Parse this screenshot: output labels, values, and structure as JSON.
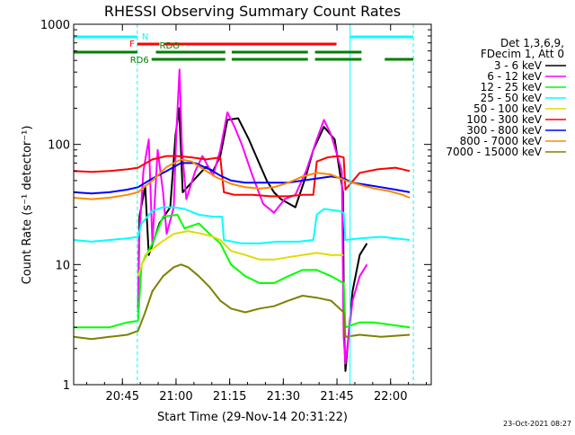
{
  "chart_data": {
    "type": "line",
    "title": "RHESSI Observing Summary Count Rates",
    "xlabel": "Start Time (29-Nov-14 20:31:22)",
    "ylabel": "Count Rate (s⁻¹ detector⁻¹)",
    "yscale": "log",
    "ylim": [
      1,
      1000
    ],
    "xlim_minutes": [
      0,
      100
    ],
    "x_tick_labels": [
      "20:45",
      "21:00",
      "21:15",
      "21:30",
      "21:45",
      "22:00"
    ],
    "x_tick_minutes": [
      13.63,
      28.63,
      43.63,
      58.63,
      73.63,
      88.63
    ],
    "y_tick_labels": [
      "1",
      "10",
      "100",
      "1000"
    ],
    "y_tick_values": [
      1,
      10,
      100,
      1000
    ],
    "legend_header": [
      "Det 1,3,6,9,",
      "FDecim 1, Att 0"
    ],
    "legend_position": "right",
    "footer": "23-Oct-2021 08:27",
    "series": [
      {
        "name": "3 - 6 keV",
        "color": "#000000",
        "points": [
          [
            18,
            4
          ],
          [
            18.4,
            25
          ],
          [
            20,
            45
          ],
          [
            21,
            12
          ],
          [
            24,
            22
          ],
          [
            27,
            30
          ],
          [
            28.5,
            120
          ],
          [
            29.5,
            200
          ],
          [
            30.5,
            40
          ],
          [
            34,
            52
          ],
          [
            37,
            65
          ],
          [
            39,
            60
          ],
          [
            41,
            80
          ],
          [
            43,
            160
          ],
          [
            46,
            165
          ],
          [
            49,
            110
          ],
          [
            51,
            80
          ],
          [
            54,
            50
          ],
          [
            56,
            40
          ],
          [
            58,
            35
          ],
          [
            62,
            30
          ],
          [
            65,
            55
          ],
          [
            67,
            90
          ],
          [
            70,
            140
          ],
          [
            73,
            110
          ],
          [
            75.3,
            40
          ],
          [
            75.6,
            3
          ],
          [
            76,
            1.3
          ],
          [
            78,
            6
          ],
          [
            80,
            12
          ],
          [
            82,
            15
          ]
        ]
      },
      {
        "name": "6 - 12 keV",
        "color": "#ff00ff",
        "points": [
          [
            18,
            4
          ],
          [
            18.4,
            18
          ],
          [
            19.5,
            60
          ],
          [
            21,
            110
          ],
          [
            22,
            15
          ],
          [
            23.5,
            90
          ],
          [
            25,
            40
          ],
          [
            26,
            18
          ],
          [
            28,
            30
          ],
          [
            28.7,
            120
          ],
          [
            29.6,
            420
          ],
          [
            30.3,
            90
          ],
          [
            31.5,
            35
          ],
          [
            34,
            60
          ],
          [
            36,
            80
          ],
          [
            39,
            55
          ],
          [
            41,
            90
          ],
          [
            43,
            185
          ],
          [
            45,
            140
          ],
          [
            47,
            100
          ],
          [
            50,
            55
          ],
          [
            53,
            32
          ],
          [
            56,
            27
          ],
          [
            59,
            35
          ],
          [
            62,
            38
          ],
          [
            65,
            60
          ],
          [
            68,
            110
          ],
          [
            70,
            160
          ],
          [
            72,
            120
          ],
          [
            75,
            60
          ],
          [
            75.5,
            2.5
          ],
          [
            76,
            1.5
          ],
          [
            78,
            5
          ],
          [
            80,
            8
          ],
          [
            82,
            10
          ]
        ]
      },
      {
        "name": "12 - 25 keV",
        "color": "#00ff00",
        "points": [
          [
            0,
            3
          ],
          [
            10,
            3
          ],
          [
            15,
            3.3
          ],
          [
            18,
            3.4
          ],
          [
            19,
            10
          ],
          [
            22,
            15
          ],
          [
            25,
            25
          ],
          [
            29,
            26
          ],
          [
            31,
            20
          ],
          [
            35,
            22
          ],
          [
            38,
            18
          ],
          [
            41,
            15
          ],
          [
            44,
            10
          ],
          [
            48,
            8
          ],
          [
            52,
            7
          ],
          [
            56,
            7
          ],
          [
            60,
            8
          ],
          [
            64,
            9
          ],
          [
            68,
            9
          ],
          [
            72,
            8
          ],
          [
            75.5,
            7
          ],
          [
            76,
            3
          ],
          [
            80,
            3.3
          ],
          [
            84,
            3.3
          ],
          [
            94,
            3
          ]
        ]
      },
      {
        "name": "25 - 50 keV",
        "color": "#00ffff",
        "points": [
          [
            0,
            16
          ],
          [
            5,
            15.5
          ],
          [
            10,
            16
          ],
          [
            15,
            16.5
          ],
          [
            18,
            17
          ],
          [
            19,
            22
          ],
          [
            22,
            28
          ],
          [
            25,
            30
          ],
          [
            28,
            30
          ],
          [
            31,
            29
          ],
          [
            35,
            26
          ],
          [
            39,
            25
          ],
          [
            41.5,
            25
          ],
          [
            42,
            16
          ],
          [
            47,
            15
          ],
          [
            52,
            15
          ],
          [
            57,
            15.5
          ],
          [
            63,
            15.5
          ],
          [
            67,
            16
          ],
          [
            68,
            26
          ],
          [
            70,
            29
          ],
          [
            74,
            28
          ],
          [
            75.5,
            27
          ],
          [
            76,
            16
          ],
          [
            80,
            16.5
          ],
          [
            86,
            17
          ],
          [
            90,
            16.5
          ],
          [
            94,
            16
          ]
        ]
      },
      {
        "name": "50 - 100 keV",
        "color": "#dddd00",
        "points": [
          [
            18,
            8
          ],
          [
            20,
            12
          ],
          [
            24,
            15
          ],
          [
            28,
            18
          ],
          [
            32,
            19
          ],
          [
            36,
            18
          ],
          [
            39,
            17
          ],
          [
            41,
            16
          ],
          [
            44,
            13
          ],
          [
            48,
            12
          ],
          [
            52,
            11
          ],
          [
            56,
            11
          ],
          [
            60,
            11.5
          ],
          [
            64,
            12
          ],
          [
            68,
            12.5
          ],
          [
            72,
            12
          ],
          [
            75.5,
            12
          ]
        ]
      },
      {
        "name": "100 - 300 keV",
        "color": "#ff0000",
        "points": [
          [
            0,
            60
          ],
          [
            5,
            59
          ],
          [
            10,
            60
          ],
          [
            15,
            62
          ],
          [
            18,
            64
          ],
          [
            22,
            75
          ],
          [
            26,
            80
          ],
          [
            29,
            80
          ],
          [
            33,
            78
          ],
          [
            37,
            75
          ],
          [
            41,
            78
          ],
          [
            42,
            40
          ],
          [
            45,
            38
          ],
          [
            50,
            38
          ],
          [
            55,
            37
          ],
          [
            60,
            37
          ],
          [
            64,
            38
          ],
          [
            67,
            38
          ],
          [
            68,
            72
          ],
          [
            71,
            78
          ],
          [
            74,
            80
          ],
          [
            75.5,
            78
          ],
          [
            76,
            42
          ],
          [
            80,
            58
          ],
          [
            85,
            62
          ],
          [
            90,
            64
          ],
          [
            94,
            60
          ]
        ]
      },
      {
        "name": "300 - 800 keV",
        "color": "#0000ff",
        "points": [
          [
            0,
            40
          ],
          [
            5,
            39
          ],
          [
            10,
            40
          ],
          [
            15,
            42
          ],
          [
            18,
            44
          ],
          [
            22,
            52
          ],
          [
            26,
            60
          ],
          [
            30,
            70
          ],
          [
            34,
            70
          ],
          [
            38,
            62
          ],
          [
            41,
            55
          ],
          [
            44,
            50
          ],
          [
            48,
            48
          ],
          [
            52,
            48
          ],
          [
            56,
            48
          ],
          [
            60,
            48
          ],
          [
            64,
            50
          ],
          [
            68,
            52
          ],
          [
            72,
            54
          ],
          [
            75.5,
            52
          ],
          [
            78,
            48
          ],
          [
            82,
            46
          ],
          [
            86,
            44
          ],
          [
            90,
            42
          ],
          [
            94,
            40
          ]
        ]
      },
      {
        "name": "800 - 7000 keV",
        "color": "#ff8800",
        "points": [
          [
            0,
            36
          ],
          [
            5,
            35
          ],
          [
            10,
            36
          ],
          [
            15,
            38
          ],
          [
            18,
            40
          ],
          [
            22,
            50
          ],
          [
            26,
            65
          ],
          [
            30,
            75
          ],
          [
            33,
            72
          ],
          [
            36,
            63
          ],
          [
            40,
            53
          ],
          [
            44,
            47
          ],
          [
            48,
            44
          ],
          [
            52,
            43
          ],
          [
            56,
            44
          ],
          [
            60,
            48
          ],
          [
            64,
            54
          ],
          [
            68,
            58
          ],
          [
            72,
            56
          ],
          [
            76,
            50
          ],
          [
            80,
            46
          ],
          [
            84,
            43
          ],
          [
            88,
            41
          ],
          [
            92,
            38
          ],
          [
            94,
            36
          ]
        ]
      },
      {
        "name": "7000 - 15000 keV",
        "color": "#808000",
        "points": [
          [
            0,
            2.5
          ],
          [
            5,
            2.4
          ],
          [
            10,
            2.5
          ],
          [
            15,
            2.6
          ],
          [
            18,
            2.8
          ],
          [
            20,
            4
          ],
          [
            22,
            6
          ],
          [
            25,
            8
          ],
          [
            28,
            9.5
          ],
          [
            30,
            10
          ],
          [
            32,
            9.5
          ],
          [
            35,
            8
          ],
          [
            38,
            6.5
          ],
          [
            41,
            5
          ],
          [
            44,
            4.3
          ],
          [
            48,
            4
          ],
          [
            52,
            4.3
          ],
          [
            56,
            4.5
          ],
          [
            60,
            5
          ],
          [
            64,
            5.5
          ],
          [
            68,
            5.3
          ],
          [
            72,
            5
          ],
          [
            75.5,
            4
          ],
          [
            76,
            2.5
          ],
          [
            80,
            2.6
          ],
          [
            86,
            2.5
          ],
          [
            94,
            2.6
          ]
        ]
      }
    ],
    "status_bars": [
      {
        "label": "N",
        "color": "#00ffff",
        "segments": [
          [
            0,
            17.8
          ],
          [
            77.3,
            95
          ]
        ]
      },
      {
        "label": "F",
        "color": "#ff0000",
        "segments": [
          [
            17.8,
            24
          ],
          [
            25.3,
            73.5
          ]
        ]
      },
      {
        "label": "RDO",
        "color": "#008000",
        "segments": [
          [
            0,
            17.8
          ],
          [
            23,
            42.4
          ],
          [
            44.2,
            65.5
          ],
          [
            67.5,
            80.5
          ]
        ]
      },
      {
        "label": "RD6",
        "color": "#008000",
        "segments": [
          [
            21.8,
            42.4
          ],
          [
            44.2,
            65.5
          ],
          [
            67.5,
            80.5
          ],
          [
            87,
            95
          ]
        ]
      }
    ],
    "vertical_lines_minutes": [
      17.8,
      77.3,
      95
    ]
  }
}
